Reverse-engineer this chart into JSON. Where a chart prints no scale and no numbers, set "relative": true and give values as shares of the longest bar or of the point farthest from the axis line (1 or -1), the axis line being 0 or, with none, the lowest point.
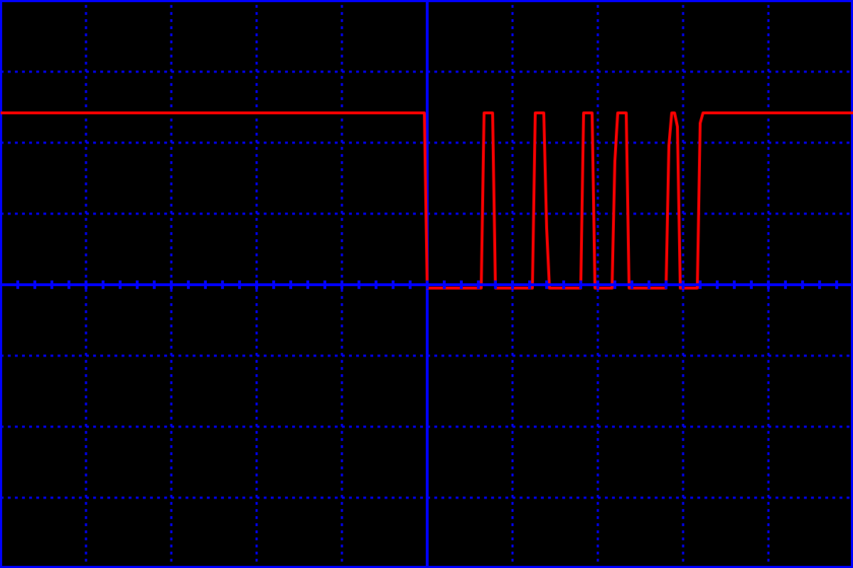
{
  "chart_data": {
    "type": "line",
    "relative": true,
    "grid": true,
    "categories": [
      null,
      null,
      null,
      null,
      null,
      null,
      null,
      null,
      null,
      null,
      null,
      null,
      null,
      null,
      null,
      null,
      null,
      null,
      null,
      null,
      null,
      null,
      null,
      null,
      null,
      null,
      null,
      null,
      null,
      null,
      null,
      null,
      null,
      null,
      null,
      null,
      null,
      null,
      null,
      null,
      null,
      null,
      null,
      null,
      null,
      null,
      null,
      null,
      null,
      null,
      null,
      null,
      null,
      null,
      null,
      null,
      null,
      null,
      null,
      null,
      null,
      null,
      null,
      null,
      null,
      null,
      null,
      null,
      null,
      null,
      null,
      null,
      null,
      null,
      null,
      null,
      null,
      null,
      null,
      null,
      null,
      null,
      null,
      null,
      null,
      null,
      null,
      null,
      null,
      null,
      null,
      null,
      null,
      null,
      null,
      null,
      null,
      null,
      null,
      null,
      null,
      null,
      null,
      null,
      null,
      null,
      null,
      null,
      null,
      null,
      null,
      null,
      null,
      null,
      null,
      null,
      null,
      null,
      null,
      null,
      null,
      null,
      null,
      null,
      null,
      null,
      null,
      null,
      null,
      null,
      null,
      null,
      null,
      null,
      null,
      null,
      null,
      null,
      null,
      null,
      null,
      null,
      null,
      null,
      null,
      null,
      null,
      null,
      null,
      null,
      null,
      null,
      null,
      null,
      null,
      null,
      null,
      null,
      null,
      null,
      null,
      null,
      null,
      null,
      null,
      null,
      null,
      null,
      null,
      null,
      null,
      null,
      null,
      null,
      null,
      null,
      null,
      null,
      null,
      null,
      null,
      null,
      null,
      null,
      null,
      null,
      null,
      null,
      null,
      null,
      null,
      null,
      null,
      null,
      null,
      null,
      null,
      null,
      null,
      null,
      null,
      null,
      null,
      null,
      null,
      null,
      null,
      null,
      null,
      null,
      null,
      null,
      null,
      null,
      null,
      null,
      null,
      null,
      null,
      null,
      null,
      null,
      null,
      null,
      null,
      null,
      null,
      null,
      null,
      null,
      null,
      null,
      null,
      null,
      null,
      null,
      null,
      null,
      null,
      null,
      null,
      null,
      null,
      null,
      null,
      null,
      null,
      null,
      null,
      null,
      null,
      null,
      null,
      null,
      null,
      null,
      null,
      null,
      null,
      null,
      null,
      null,
      null,
      null,
      null,
      null,
      null,
      null,
      null,
      null,
      null,
      null,
      null,
      null,
      null,
      null,
      null,
      null,
      null,
      null,
      null,
      null,
      null,
      null,
      null,
      null,
      null,
      null,
      null,
      null,
      null,
      null,
      null,
      null,
      null,
      null,
      null,
      null,
      null,
      null,
      null
    ],
    "series": [
      {
        "color": "#ff0000",
        "values": [
          1,
          1,
          1,
          1,
          1,
          1,
          1,
          1,
          1,
          1,
          1,
          1,
          1,
          1,
          1,
          1,
          1,
          1,
          1,
          1,
          1,
          1,
          1,
          1,
          1,
          1,
          1,
          1,
          1,
          1,
          1,
          1,
          1,
          1,
          1,
          1,
          1,
          1,
          1,
          1,
          1,
          1,
          1,
          1,
          1,
          1,
          1,
          1,
          1,
          1,
          1,
          1,
          1,
          1,
          1,
          1,
          1,
          1,
          1,
          1,
          1,
          1,
          1,
          1,
          1,
          1,
          1,
          1,
          1,
          1,
          1,
          1,
          1,
          1,
          1,
          1,
          1,
          1,
          1,
          1,
          1,
          1,
          1,
          1,
          1,
          1,
          1,
          1,
          1,
          1,
          1,
          1,
          1,
          1,
          1,
          1,
          1,
          1,
          1,
          1,
          1,
          1,
          1,
          1,
          1,
          1,
          1,
          1,
          1,
          1,
          1,
          1,
          1,
          1,
          1,
          1,
          1,
          1,
          1,
          1,
          1,
          1,
          1,
          1,
          1,
          1,
          1,
          1,
          1,
          1,
          1,
          1,
          1,
          1,
          1,
          1,
          1,
          1,
          1,
          1,
          1,
          1,
          1,
          1,
          1,
          1,
          1,
          1,
          1,
          1,
          -0.02,
          -0.02,
          -0.02,
          -0.02,
          -0.02,
          -0.02,
          -0.02,
          -0.02,
          -0.02,
          -0.02,
          -0.02,
          -0.02,
          -0.02,
          -0.02,
          -0.02,
          -0.02,
          -0.02,
          -0.02,
          -0.02,
          -0.02,
          1,
          1,
          1,
          1,
          -0.02,
          -0.02,
          -0.02,
          -0.02,
          -0.02,
          -0.02,
          -0.02,
          -0.02,
          -0.02,
          -0.02,
          -0.02,
          -0.02,
          -0.02,
          -0.02,
          1,
          1,
          1,
          1,
          0.33,
          -0.02,
          -0.02,
          -0.02,
          -0.02,
          -0.02,
          -0.02,
          -0.02,
          -0.02,
          -0.02,
          -0.02,
          -0.02,
          -0.02,
          1,
          1,
          1,
          1,
          -0.02,
          -0.02,
          -0.02,
          -0.02,
          -0.02,
          -0.02,
          -0.02,
          0.72,
          1,
          1,
          1,
          1,
          -0.02,
          -0.02,
          -0.02,
          -0.02,
          -0.02,
          -0.02,
          -0.02,
          -0.02,
          -0.02,
          -0.02,
          -0.02,
          -0.02,
          -0.02,
          -0.02,
          0.81,
          1,
          1,
          0.92,
          -0.02,
          -0.02,
          -0.02,
          -0.02,
          -0.02,
          -0.02,
          -0.02,
          0.94,
          1,
          1,
          1,
          1,
          1,
          1,
          1,
          1,
          1,
          1,
          1,
          1,
          1,
          1,
          1,
          1,
          1,
          1,
          1,
          1,
          1,
          1,
          1,
          1,
          1,
          1,
          1,
          1,
          1,
          1,
          1,
          1,
          1,
          1,
          1,
          1,
          1,
          1,
          1,
          1,
          1,
          1,
          1,
          1,
          1,
          1,
          1,
          1,
          1,
          1,
          1,
          1,
          1,
          1
        ]
      }
    ]
  }
}
